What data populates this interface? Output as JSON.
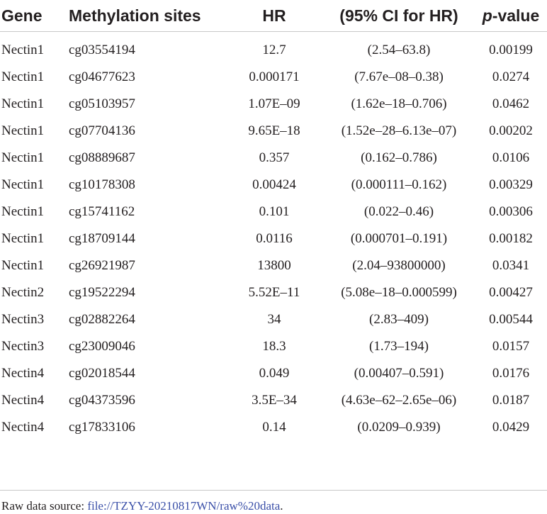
{
  "table": {
    "headers": {
      "gene": "Gene",
      "site": "Methylation sites",
      "hr": "HR",
      "ci": "(95% CI for HR)",
      "p_prefix": "p",
      "p_suffix": "-value"
    },
    "rows": [
      {
        "gene": "Nectin1",
        "site": "cg03554194",
        "hr": "12.7",
        "ci": "(2.54–63.8)",
        "p": "0.00199"
      },
      {
        "gene": "Nectin1",
        "site": "cg04677623",
        "hr": "0.000171",
        "ci": "(7.67e–08–0.38)",
        "p": "0.0274"
      },
      {
        "gene": "Nectin1",
        "site": "cg05103957",
        "hr": "1.07E–09",
        "ci": "(1.62e–18–0.706)",
        "p": "0.0462"
      },
      {
        "gene": "Nectin1",
        "site": "cg07704136",
        "hr": "9.65E–18",
        "ci": "(1.52e–28–6.13e–07)",
        "p": "0.00202"
      },
      {
        "gene": "Nectin1",
        "site": "cg08889687",
        "hr": "0.357",
        "ci": "(0.162–0.786)",
        "p": "0.0106"
      },
      {
        "gene": "Nectin1",
        "site": "cg10178308",
        "hr": "0.00424",
        "ci": "(0.000111–0.162)",
        "p": "0.00329"
      },
      {
        "gene": "Nectin1",
        "site": "cg15741162",
        "hr": "0.101",
        "ci": "(0.022–0.46)",
        "p": "0.00306"
      },
      {
        "gene": "Nectin1",
        "site": "cg18709144",
        "hr": "0.0116",
        "ci": "(0.000701–0.191)",
        "p": "0.00182"
      },
      {
        "gene": "Nectin1",
        "site": "cg26921987",
        "hr": "13800",
        "ci": "(2.04–93800000)",
        "p": "0.0341"
      },
      {
        "gene": "Nectin2",
        "site": "cg19522294",
        "hr": "5.52E–11",
        "ci": "(5.08e–18–0.000599)",
        "p": "0.00427"
      },
      {
        "gene": "Nectin3",
        "site": "cg02882264",
        "hr": "34",
        "ci": "(2.83–409)",
        "p": "0.00544"
      },
      {
        "gene": "Nectin3",
        "site": "cg23009046",
        "hr": "18.3",
        "ci": "(1.73–194)",
        "p": "0.0157"
      },
      {
        "gene": "Nectin4",
        "site": "cg02018544",
        "hr": "0.049",
        "ci": "(0.00407–0.591)",
        "p": "0.0176"
      },
      {
        "gene": "Nectin4",
        "site": "cg04373596",
        "hr": "3.5E–34",
        "ci": "(4.63e–62–2.65e–06)",
        "p": "0.0187"
      },
      {
        "gene": "Nectin4",
        "site": "cg17833106",
        "hr": "0.14",
        "ci": "(0.0209–0.939)",
        "p": "0.0429"
      }
    ]
  },
  "footnote": {
    "prefix": "Raw data source: ",
    "link_text": "file://TZYY-20210817WN/raw%20data",
    "suffix": "."
  },
  "colors": {
    "text": "#231f20",
    "link": "#3a4fa8",
    "rule": "#c8c8c8"
  }
}
